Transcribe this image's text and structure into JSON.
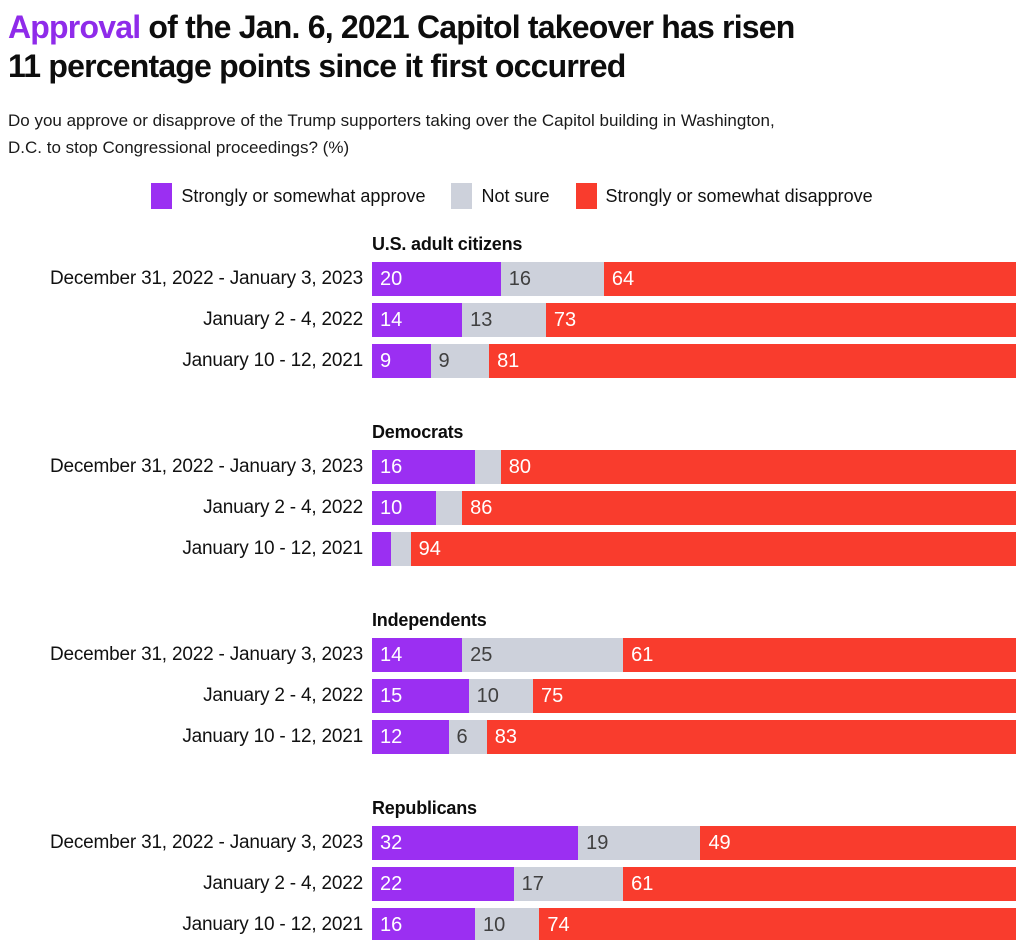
{
  "header": {
    "title_highlight": "Approval",
    "title_rest_line1": " of the Jan. 6, 2021 Capitol takeover has risen",
    "title_line2": "11 percentage points since it first occurred",
    "subtitle_line1": "Do you approve or disapprove of the Trump supporters taking over the Capitol building in Washington,",
    "subtitle_line2": "D.C. to stop Congressional proceedings? (%)"
  },
  "colors": {
    "approve": "#9b2ff2",
    "not_sure": "#cdd1db",
    "disapprove": "#f93c2d",
    "title_highlight": "#8f2bea",
    "value_label_light": "#ffffff",
    "value_label_dark": "#404040"
  },
  "legend": [
    {
      "label": "Strongly or somewhat approve",
      "color": "#9b2ff2"
    },
    {
      "label": "Not sure",
      "color": "#cdd1db"
    },
    {
      "label": "Strongly or somewhat disapprove",
      "color": "#f93c2d"
    }
  ],
  "chart_data": {
    "type": "bar",
    "variant": "horizontal-stacked",
    "x_range": [
      0,
      100
    ],
    "units": "percent",
    "series": [
      {
        "name": "Strongly or somewhat approve",
        "color": "#9b2ff2",
        "text_style": "light"
      },
      {
        "name": "Not sure",
        "color": "#cdd1db",
        "text_style": "dark"
      },
      {
        "name": "Strongly or somewhat disapprove",
        "color": "#f93c2d",
        "text_style": "light"
      }
    ],
    "groups": [
      {
        "name": "U.S. adult citizens",
        "rows": [
          {
            "label": "December 31, 2022 - January 3, 2023",
            "values": [
              20,
              16,
              64
            ],
            "value_labels": [
              "20",
              "16",
              "64"
            ]
          },
          {
            "label": "January 2 - 4, 2022",
            "values": [
              14,
              13,
              73
            ],
            "value_labels": [
              "14",
              "13",
              "73"
            ]
          },
          {
            "label": "January 10 - 12, 2021",
            "values": [
              9,
              9,
              81
            ],
            "value_labels": [
              "9",
              "9",
              "81"
            ]
          }
        ]
      },
      {
        "name": "Democrats",
        "rows": [
          {
            "label": "December 31, 2022 - January 3, 2023",
            "values": [
              16,
              4,
              80
            ],
            "value_labels": [
              "16",
              "",
              "80"
            ]
          },
          {
            "label": "January 2 - 4, 2022",
            "values": [
              10,
              4,
              86
            ],
            "value_labels": [
              "10",
              "",
              "86"
            ]
          },
          {
            "label": "January 10 - 12, 2021",
            "values": [
              3,
              3,
              94
            ],
            "value_labels": [
              "",
              "",
              "94"
            ]
          }
        ]
      },
      {
        "name": "Independents",
        "rows": [
          {
            "label": "December 31, 2022 - January 3, 2023",
            "values": [
              14,
              25,
              61
            ],
            "value_labels": [
              "14",
              "25",
              "61"
            ]
          },
          {
            "label": "January 2 - 4, 2022",
            "values": [
              15,
              10,
              75
            ],
            "value_labels": [
              "15",
              "10",
              "75"
            ]
          },
          {
            "label": "January 10 - 12, 2021",
            "values": [
              12,
              6,
              83
            ],
            "value_labels": [
              "12",
              "6",
              "83"
            ]
          }
        ]
      },
      {
        "name": "Republicans",
        "rows": [
          {
            "label": "December 31, 2022 - January 3, 2023",
            "values": [
              32,
              19,
              49
            ],
            "value_labels": [
              "32",
              "19",
              "49"
            ]
          },
          {
            "label": "January 2 - 4, 2022",
            "values": [
              22,
              17,
              61
            ],
            "value_labels": [
              "22",
              "17",
              "61"
            ]
          },
          {
            "label": "January 10 - 12, 2021",
            "values": [
              16,
              10,
              74
            ],
            "value_labels": [
              "16",
              "10",
              "74"
            ]
          }
        ]
      }
    ]
  }
}
